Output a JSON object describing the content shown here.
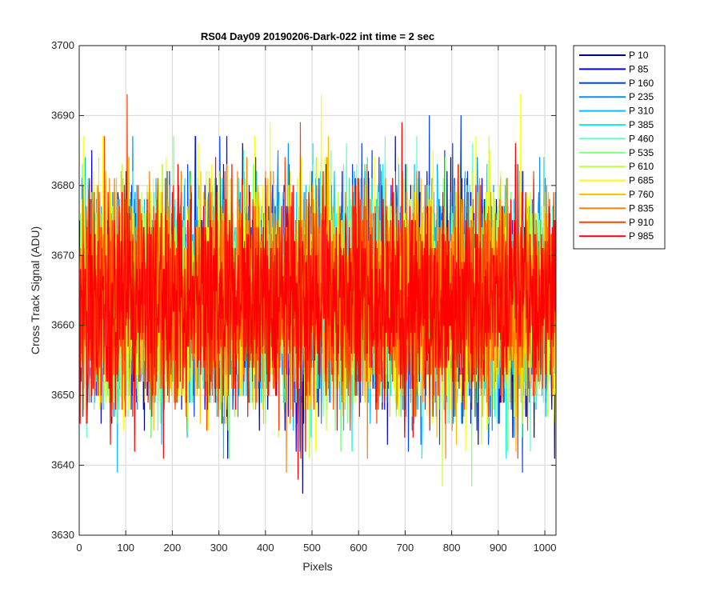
{
  "chart_data": {
    "type": "line",
    "title": "RS04 Day09 20190206-Dark-022 int time = 2 sec",
    "xlabel": "Pixels",
    "ylabel": "Cross Track Signal (ADU)",
    "xlim": [
      0,
      1024
    ],
    "ylim": [
      3630,
      3700
    ],
    "xticks": [
      0,
      100,
      200,
      300,
      400,
      500,
      600,
      700,
      800,
      900,
      1000
    ],
    "yticks": [
      3630,
      3640,
      3650,
      3660,
      3670,
      3680,
      3690,
      3700
    ],
    "grid": true,
    "legend_position": "outside-right-top",
    "x_range_points": [
      1,
      1024
    ],
    "mean_value": 3664,
    "typical_spread": [
      3646,
      3682
    ],
    "series": [
      {
        "name": "P 10",
        "color": "#00008f"
      },
      {
        "name": "P 85",
        "color": "#0000ef"
      },
      {
        "name": "P 160",
        "color": "#0040ff"
      },
      {
        "name": "P 235",
        "color": "#0090ff"
      },
      {
        "name": "P 310",
        "color": "#00c0ff"
      },
      {
        "name": "P 385",
        "color": "#10f0f0"
      },
      {
        "name": "P 460",
        "color": "#60ffcf"
      },
      {
        "name": "P 535",
        "color": "#80ff80"
      },
      {
        "name": "P 610",
        "color": "#c0ff40"
      },
      {
        "name": "P 685",
        "color": "#ffff00"
      },
      {
        "name": "P 760",
        "color": "#ffc000"
      },
      {
        "name": "P 835",
        "color": "#ff8000"
      },
      {
        "name": "P 910",
        "color": "#ff4000"
      },
      {
        "name": "P 985",
        "color": "#ff0000"
      }
    ],
    "extremes": [
      {
        "series": "P 910",
        "x": 103,
        "y": 3693
      },
      {
        "series": "P 685",
        "x": 520,
        "y": 3693
      },
      {
        "series": "P 685",
        "x": 948,
        "y": 3693
      },
      {
        "series": "P 160",
        "x": 752,
        "y": 3690
      },
      {
        "series": "P 160",
        "x": 820,
        "y": 3690
      },
      {
        "series": "P 685",
        "x": 410,
        "y": 3689
      },
      {
        "series": "P 910",
        "x": 475,
        "y": 3689
      },
      {
        "series": "P 985",
        "x": 693,
        "y": 3689
      },
      {
        "series": "P 10",
        "x": 480,
        "y": 3636
      },
      {
        "series": "P 835",
        "x": 445,
        "y": 3639
      },
      {
        "series": "P 985",
        "x": 470,
        "y": 3638
      },
      {
        "series": "P 610",
        "x": 780,
        "y": 3637
      },
      {
        "series": "P 535",
        "x": 843,
        "y": 3637
      },
      {
        "series": "P 310",
        "x": 82,
        "y": 3639
      },
      {
        "series": "P 160",
        "x": 952,
        "y": 3639
      }
    ]
  }
}
